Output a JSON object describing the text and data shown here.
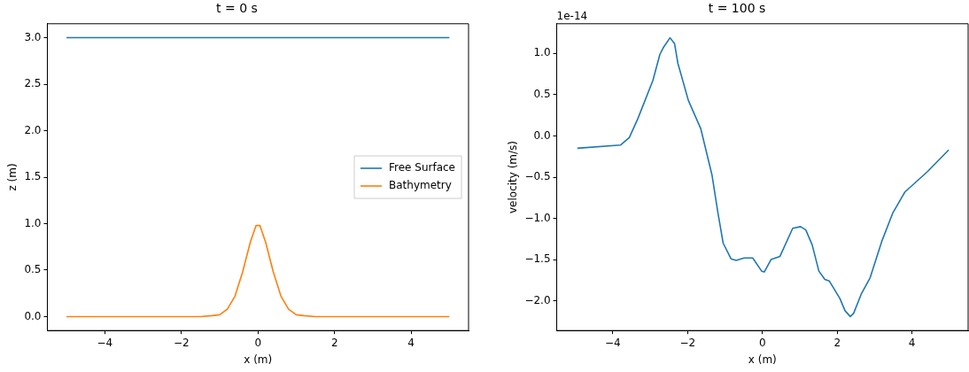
{
  "chart_data": [
    {
      "type": "line",
      "title": "t = 0 s",
      "xlabel": "x (m)",
      "ylabel": "z (m)",
      "xlim": [
        -5.5,
        5.5
      ],
      "ylim": [
        -0.15,
        3.15
      ],
      "yticks": [
        {
          "value": 0,
          "label": "0.0"
        },
        0.5,
        {
          "value": 1,
          "label": "1.0"
        },
        1.5,
        {
          "value": 2,
          "label": "2.0"
        },
        2.5,
        {
          "value": 3,
          "label": "3.0"
        }
      ],
      "xticks": [
        -4,
        -2,
        0,
        2,
        4
      ],
      "grid": false,
      "legend": "center right",
      "marker": "none",
      "line_style": "solid",
      "series": [
        {
          "name": "Free Surface",
          "color": "#1f77b4",
          "x": [
            -5,
            5
          ],
          "values": [
            3,
            3
          ]
        },
        {
          "name": "Bathymetry",
          "color": "#ff7f0e",
          "x": [
            -5,
            -1.5,
            -1.2,
            -1,
            -0.8,
            -0.6,
            -0.4,
            -0.2,
            -0.05,
            0.05,
            0.2,
            0.4,
            0.6,
            0.8,
            1,
            1.2,
            1.5,
            5
          ],
          "values": [
            0,
            0,
            0.01,
            0.02,
            0.08,
            0.22,
            0.48,
            0.8,
            0.98,
            0.98,
            0.8,
            0.48,
            0.22,
            0.08,
            0.02,
            0.01,
            0,
            0
          ]
        }
      ]
    },
    {
      "type": "line",
      "title": "t = 100 s",
      "xlabel": "x (m)",
      "ylabel": "velocity (m/s)",
      "annotations": [
        "1e-14"
      ],
      "xlim": [
        -5.5,
        5.5
      ],
      "ylim": [
        -2.36,
        1.36
      ],
      "yticks": [
        {
          "value": -2,
          "label": "−2.0"
        },
        {
          "value": -1.5,
          "label": "−1.5"
        },
        {
          "value": -1,
          "label": "−1.0"
        },
        {
          "value": -0.5,
          "label": "−0.5"
        },
        {
          "value": 0,
          "label": "0.0"
        },
        0.5,
        {
          "value": 1,
          "label": "1.0"
        }
      ],
      "xticks": [
        -4,
        -2,
        0,
        2,
        4
      ],
      "grid": false,
      "legend": false,
      "marker": "none",
      "line_style": "solid",
      "series": [
        {
          "color": "#1f77b4",
          "x": [
            -4.95,
            -3.79,
            -3.56,
            -3.33,
            -2.93,
            -2.74,
            -2.65,
            -2.47,
            -2.35,
            -2.26,
            -1.98,
            -1.65,
            -1.35,
            -1.19,
            -1.05,
            -0.84,
            -0.7,
            -0.49,
            -0.26,
            -0.02,
            0.05,
            0.23,
            0.47,
            0.81,
            1.02,
            1.16,
            1.33,
            1.51,
            1.67,
            1.79,
            2.07,
            2.21,
            2.35,
            2.44,
            2.65,
            2.88,
            3.19,
            3.49,
            3.81,
            4.42,
            4.98
          ],
          "values": [
            -0.15,
            -0.11,
            -0.02,
            0.21,
            0.67,
            0.99,
            1.07,
            1.19,
            1.12,
            0.88,
            0.43,
            0.09,
            -0.47,
            -0.93,
            -1.3,
            -1.49,
            -1.51,
            -1.48,
            -1.48,
            -1.64,
            -1.65,
            -1.5,
            -1.46,
            -1.12,
            -1.1,
            -1.14,
            -1.32,
            -1.64,
            -1.74,
            -1.76,
            -1.97,
            -2.12,
            -2.19,
            -2.15,
            -1.91,
            -1.72,
            -1.28,
            -0.93,
            -0.68,
            -0.43,
            -0.17
          ]
        }
      ]
    }
  ]
}
